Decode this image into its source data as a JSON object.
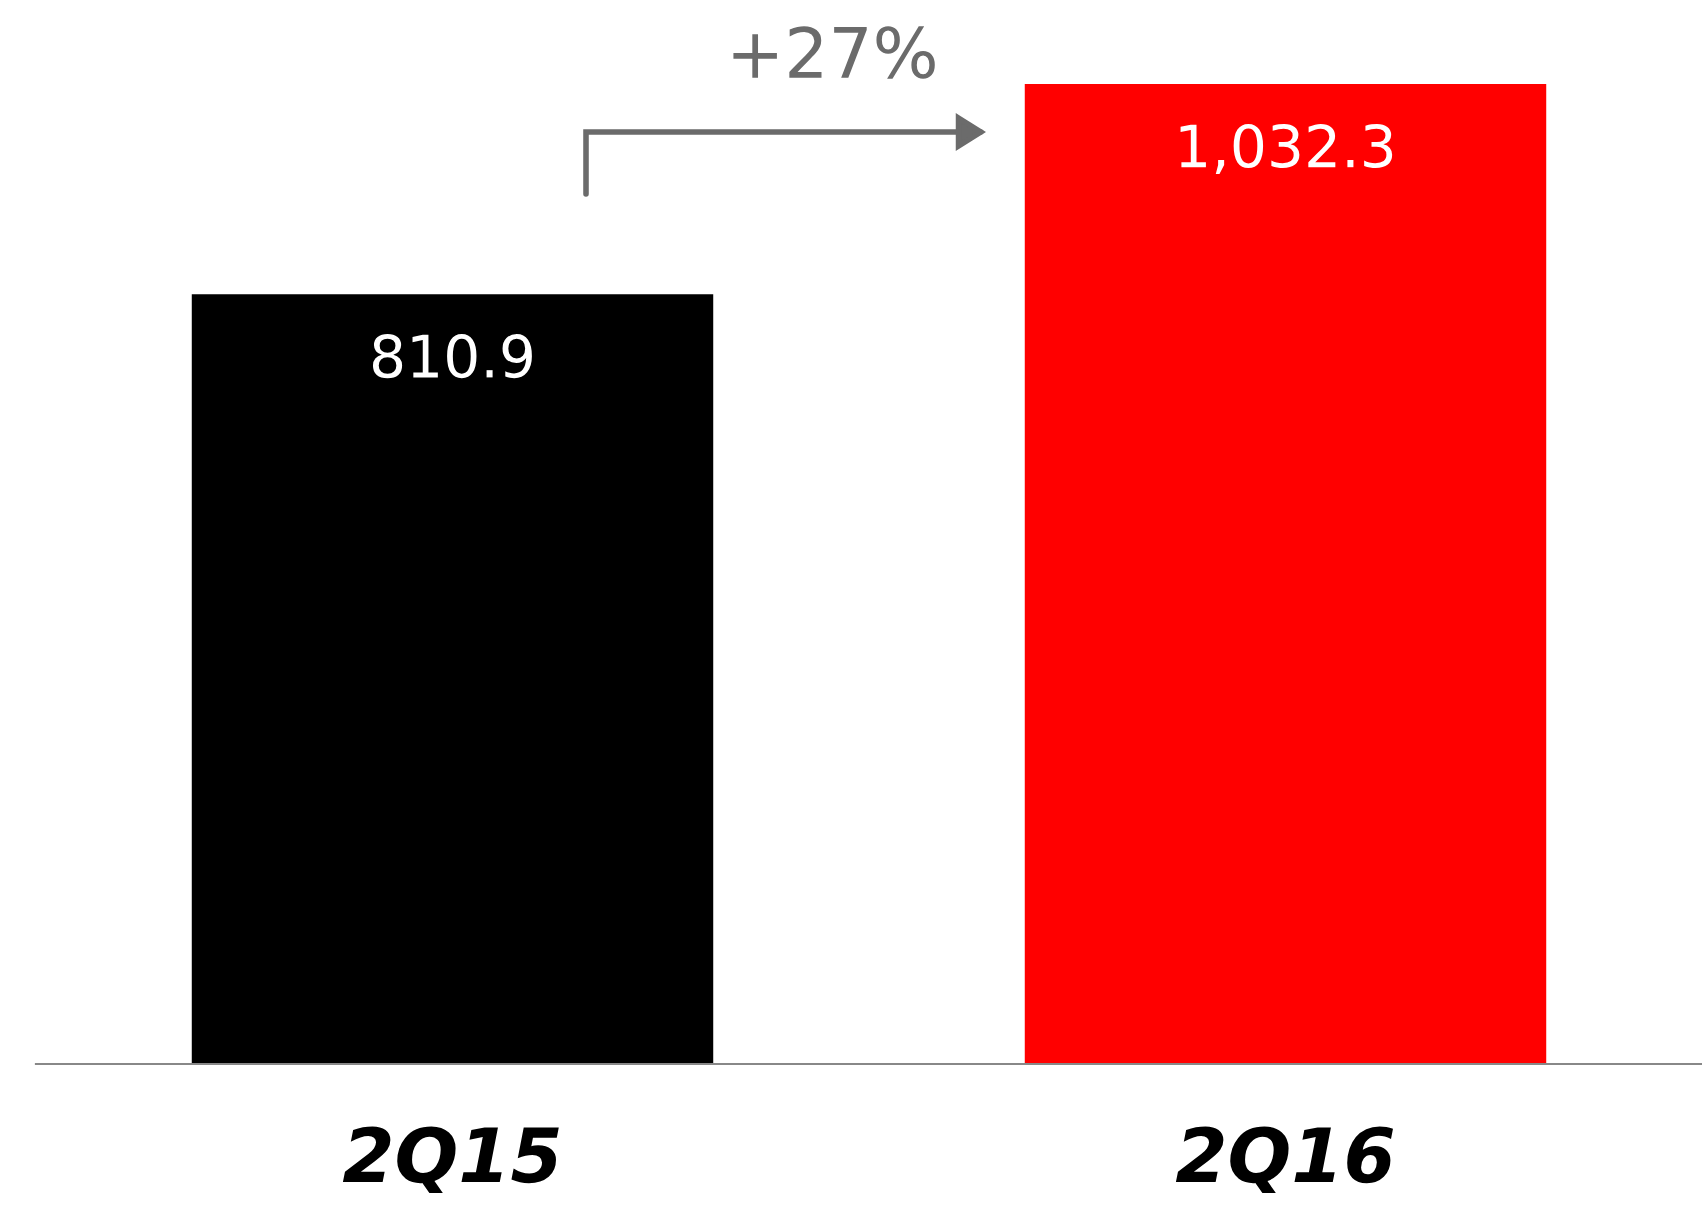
{
  "chart_data": {
    "type": "bar",
    "categories": [
      "2Q15",
      "2Q16"
    ],
    "values": [
      810.9,
      1032.3
    ],
    "colors": [
      "#000000",
      "#ff0000"
    ],
    "value_labels": [
      "810.9",
      "1,032.3"
    ],
    "annotations": [
      "+27%"
    ]
  }
}
